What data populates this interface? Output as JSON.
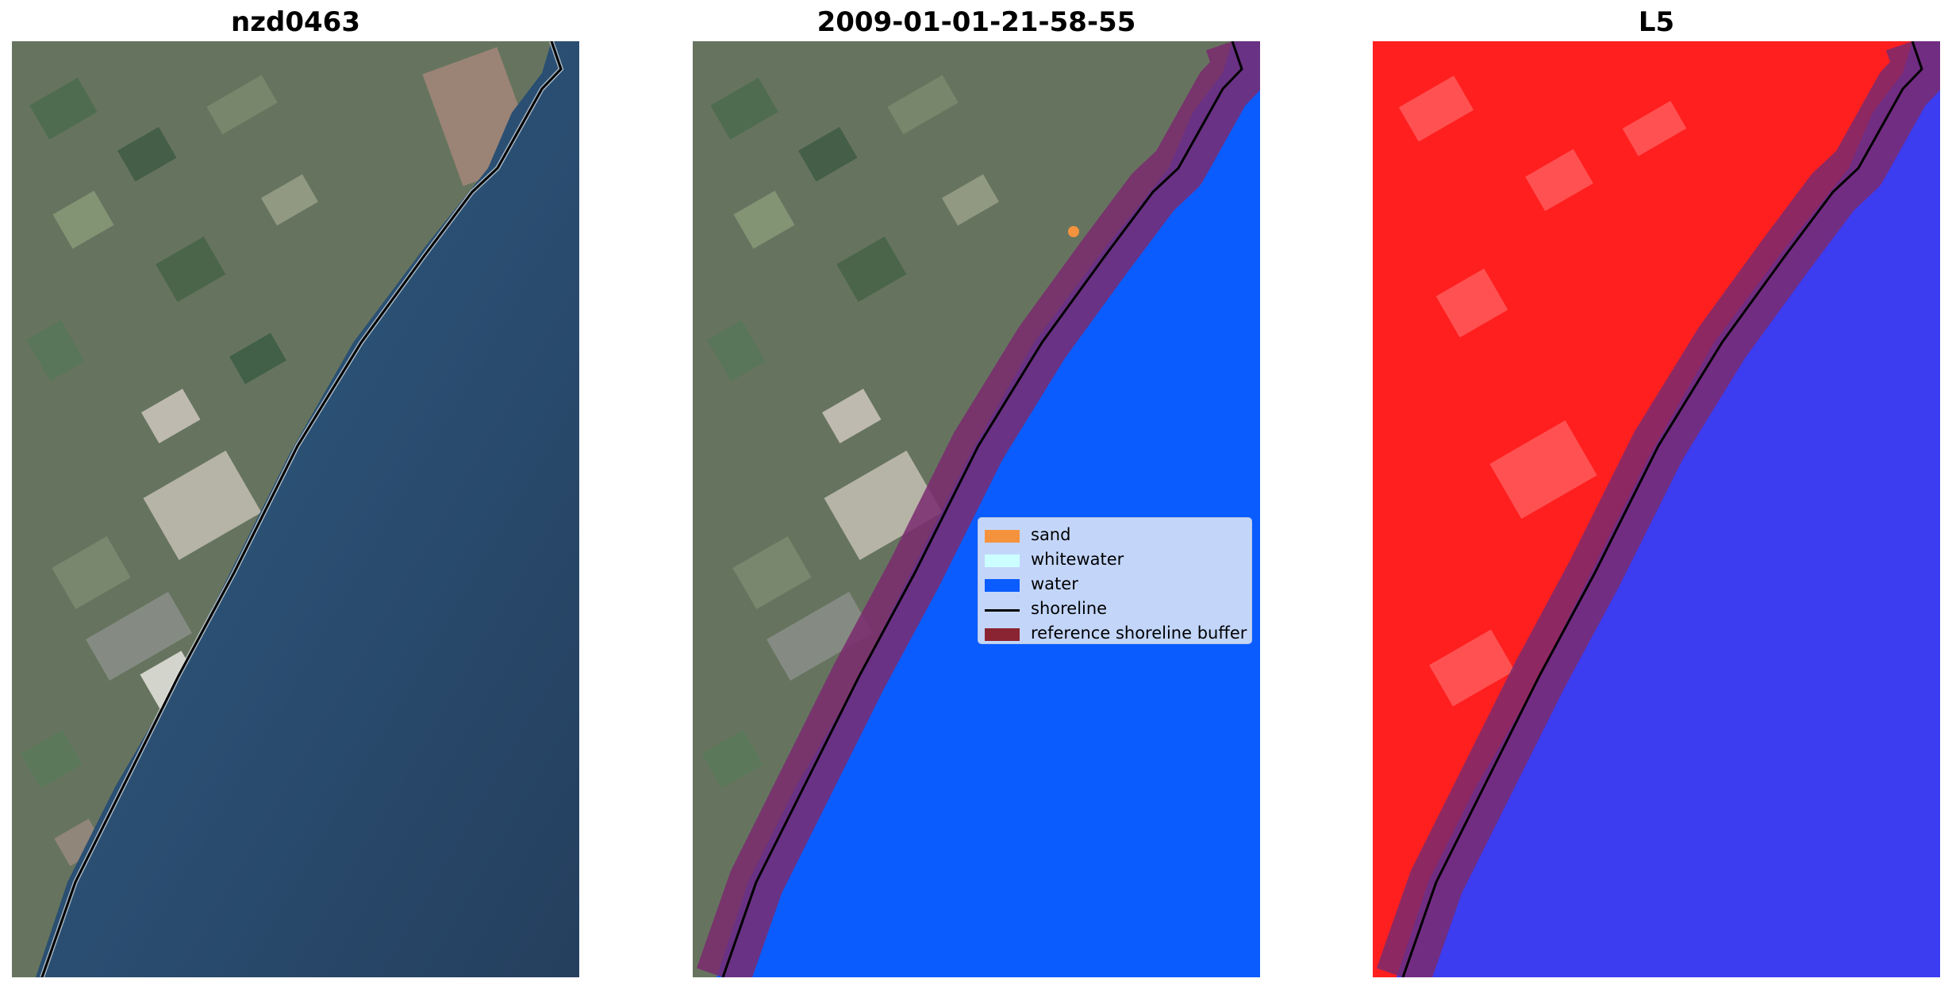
{
  "panels": [
    {
      "title": "nzd0463",
      "kind": "rgb-satellite-image"
    },
    {
      "title": "2009-01-01-21-58-55",
      "kind": "classified-overlay"
    },
    {
      "title": "L5",
      "kind": "probability-map"
    }
  ],
  "legend": {
    "items": [
      {
        "label": "sand",
        "color": "#f5923e",
        "type": "patch"
      },
      {
        "label": "whitewater",
        "color": "#ccffff",
        "type": "patch"
      },
      {
        "label": "water",
        "color": "#0a5cff",
        "type": "patch"
      },
      {
        "label": "shoreline",
        "color": "#000000",
        "type": "line"
      },
      {
        "label": "reference shoreline buffer",
        "color": "#8b2432",
        "type": "patch"
      }
    ]
  },
  "colors": {
    "land": "#5e6f5c",
    "sea": "#2a4f74",
    "water_class": "#0a5cff",
    "buffer": "#7a2a6e",
    "land_probability": "#ff1f1f",
    "water_probability": "#3c3cf0"
  }
}
